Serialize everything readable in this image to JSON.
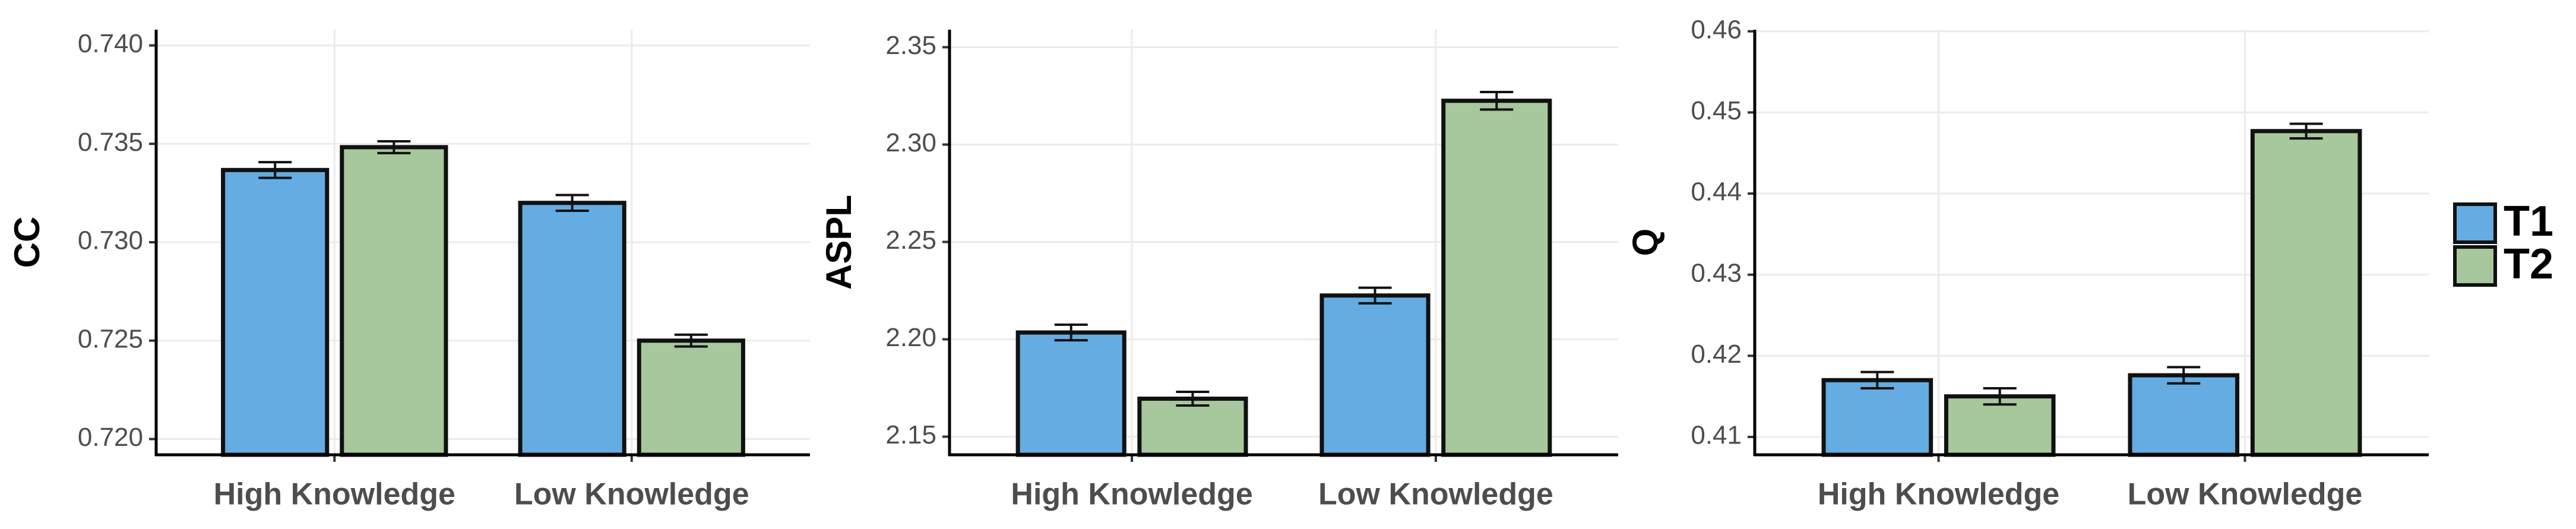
{
  "chart_data": [
    {
      "type": "bar",
      "y_label": "CC",
      "categories": [
        "High Knowledge",
        "Low Knowledge"
      ],
      "series": [
        {
          "color": "#64ace2",
          "values": [
            0.73367,
            0.732
          ],
          "errors": [
            0.0004,
            0.0004
          ]
        },
        {
          "color": "#a7c79c",
          "values": [
            0.73483,
            0.725
          ],
          "errors": [
            0.0003,
            0.0003
          ]
        }
      ],
      "ylim": [
        0.7192,
        0.7408
      ],
      "yticks": [
        {
          "value": 0.72,
          "label": "0.720"
        },
        0.725,
        {
          "value": 0.73,
          "label": "0.730"
        },
        0.735,
        {
          "value": 0.74,
          "label": "0.740"
        }
      ],
      "grid": true
    },
    {
      "type": "bar",
      "y_label": "ASPL",
      "categories": [
        "High Knowledge",
        "Low Knowledge"
      ],
      "series": [
        {
          "color": "#64ace2",
          "values": [
            2.2035,
            2.2225
          ],
          "errors": [
            0.004,
            0.004
          ]
        },
        {
          "color": "#a7c79c",
          "values": [
            2.1695,
            2.3225
          ],
          "errors": [
            0.0035,
            0.0045
          ]
        }
      ],
      "ylim": [
        2.1407,
        2.359
      ],
      "yticks": [
        2.15,
        {
          "value": 2.2,
          "label": "2.20"
        },
        2.25,
        {
          "value": 2.3,
          "label": "2.30"
        },
        2.35
      ],
      "grid": true
    },
    {
      "type": "bar",
      "y_label": "Q",
      "categories": [
        "High Knowledge",
        "Low Knowledge"
      ],
      "series": [
        {
          "name": "T1",
          "color": "#64ace2",
          "values": [
            0.417,
            0.4176
          ],
          "errors": [
            0.001,
            0.001
          ]
        },
        {
          "name": "T2",
          "color": "#a7c79c",
          "values": [
            0.415,
            0.4477
          ],
          "errors": [
            0.001,
            0.0009
          ]
        }
      ],
      "ylim": [
        0.4078,
        0.4602
      ],
      "yticks": [
        0.41,
        0.42,
        0.43,
        0.44,
        0.45,
        0.46
      ],
      "grid": true,
      "legend": "right"
    }
  ]
}
